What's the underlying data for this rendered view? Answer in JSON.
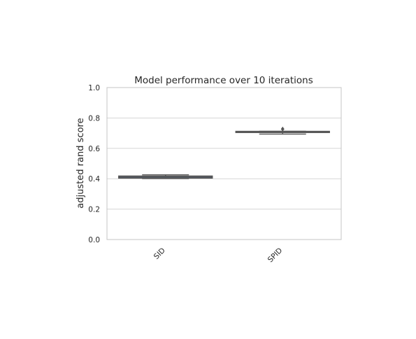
{
  "chart_data": {
    "type": "box",
    "title": "Model performance over 10 iterations",
    "xlabel": "",
    "ylabel": "adjusted rand score",
    "ylim": [
      0,
      1
    ],
    "yticks": [
      "0.0",
      "0.2",
      "0.4",
      "0.6",
      "0.8",
      "1.0"
    ],
    "categories": [
      "SID",
      "SPID"
    ],
    "grid": true,
    "colors": {
      "SID": "#4a6fa5",
      "SPID": "#4a8a5c",
      "whisker": "#555555",
      "frame": "#c4c4c4"
    },
    "boxes": [
      {
        "name": "SID",
        "q1": 0.404,
        "median": 0.411,
        "q3": 0.418,
        "whislo": 0.401,
        "whishi": 0.426,
        "fliers": []
      },
      {
        "name": "SPID",
        "q1": 0.704,
        "median": 0.708,
        "q3": 0.712,
        "whislo": 0.694,
        "whishi": 0.712,
        "fliers": [
          0.727
        ]
      }
    ]
  }
}
